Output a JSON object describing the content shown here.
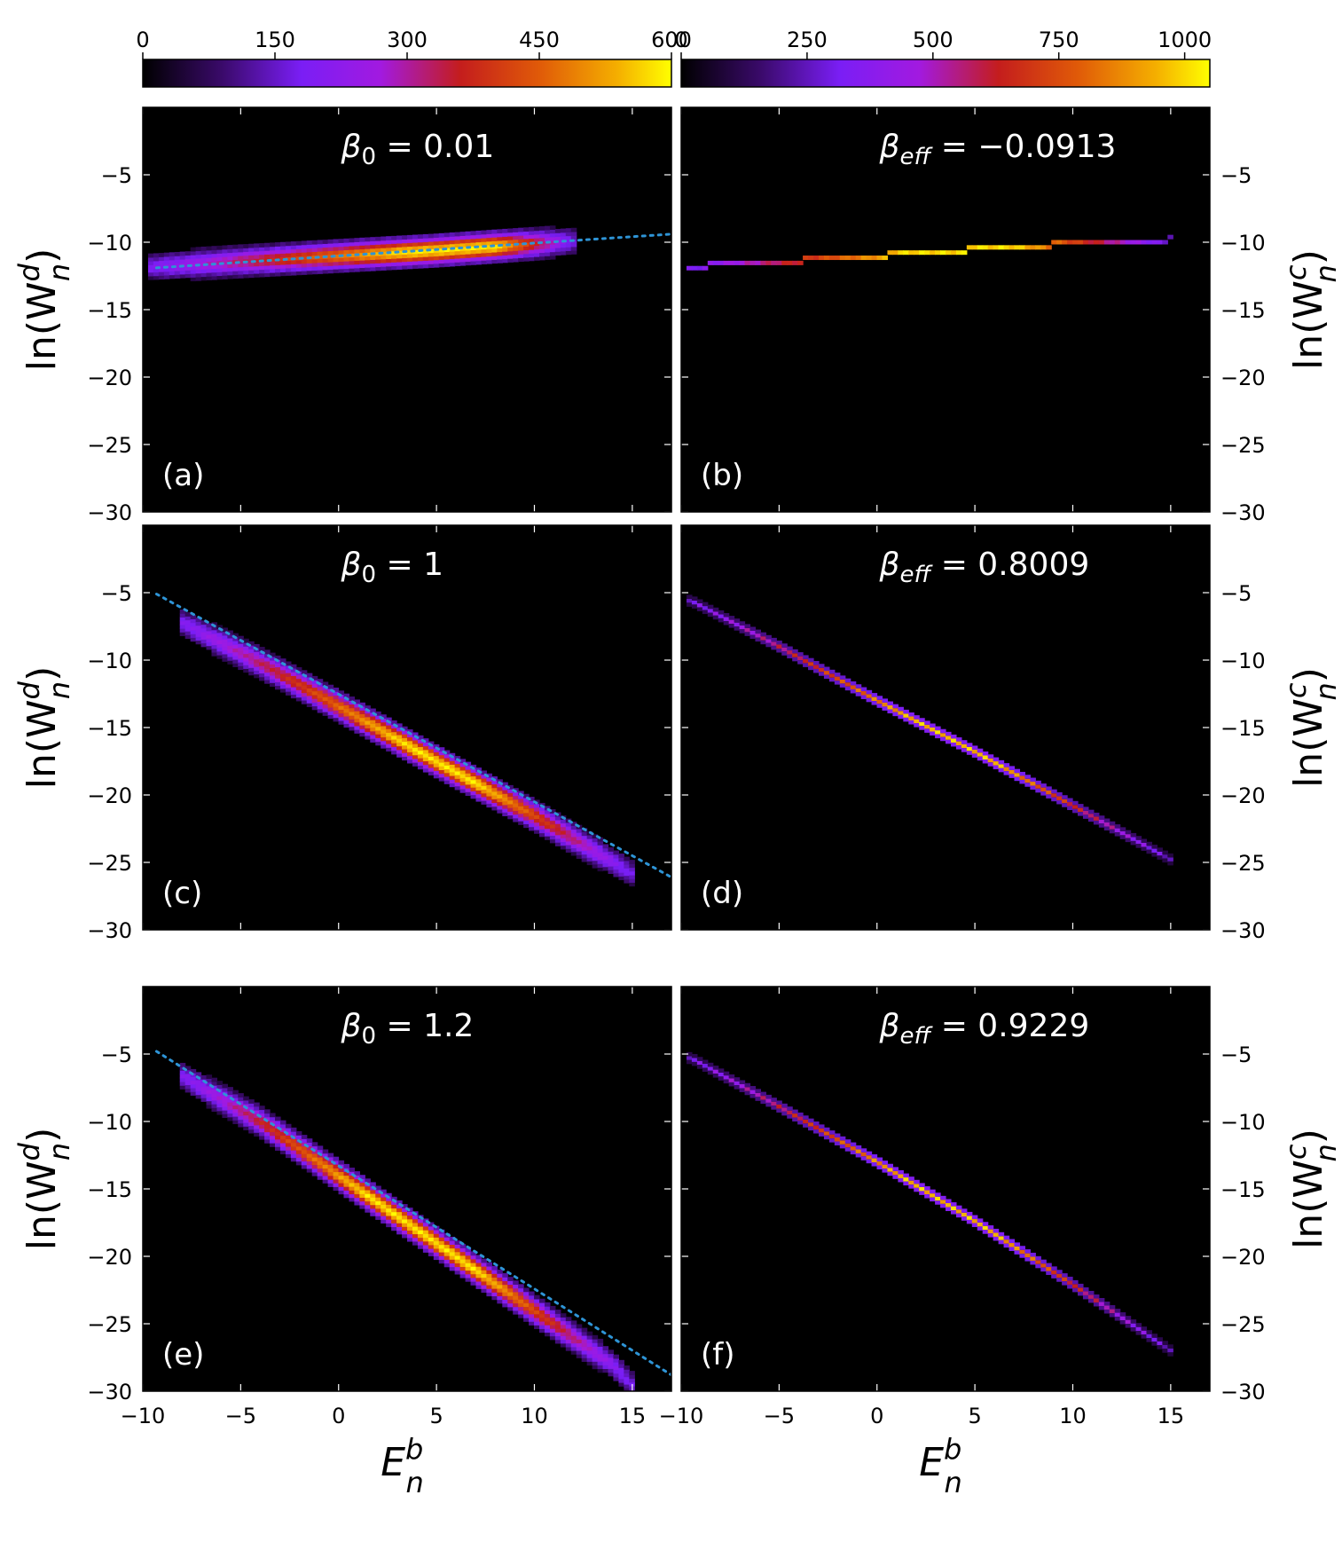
{
  "chart_data": {
    "type": "heatmap",
    "colormap": "gnuplot-like (black-purple-red-orange-yellow)",
    "colorbars": [
      {
        "for_column": "left",
        "ticks": [
          "0",
          "150",
          "300",
          "450",
          "600"
        ],
        "range": [
          0,
          600
        ]
      },
      {
        "for_column": "right",
        "ticks": [
          "0",
          "250",
          "500",
          "750",
          "1000"
        ],
        "range": [
          0,
          1050
        ]
      }
    ],
    "xlabel": {
      "base": "E",
      "sub": "n",
      "sup": "b"
    },
    "ylabel_left": {
      "prefix": "ln(W",
      "sub": "n",
      "sup": "d",
      "suffix": ")"
    },
    "ylabel_right": {
      "prefix": "ln(W",
      "sub": "n",
      "sup": "c",
      "suffix": ")"
    },
    "xlim": [
      -10,
      17
    ],
    "ylim": [
      -30,
      0
    ],
    "x_ticks": [
      "−10",
      "−5",
      "0",
      "5",
      "10",
      "15"
    ],
    "y_ticks": [
      "−5",
      "−10",
      "−15",
      "−20",
      "−25",
      "−30"
    ],
    "panels": [
      {
        "id": "a",
        "tag": "(a)",
        "beta": {
          "sym": "β",
          "sub": "0",
          "value": " = 0.01"
        },
        "distribution": "broad",
        "peak": 600,
        "fit_line": [
          [
            -9.3,
            -11.9
          ],
          [
            17,
            -9.4
          ]
        ],
        "ridge": [
          [
            -9.5,
            -11.8
          ],
          [
            -5,
            -11.4
          ],
          [
            0,
            -11.0
          ],
          [
            5,
            -10.6
          ],
          [
            10,
            -10.1
          ],
          [
            12,
            -9.9
          ]
        ],
        "hot_x": [
          3.5,
          8
        ]
      },
      {
        "id": "b",
        "tag": "(b)",
        "beta": {
          "sym": "β",
          "sub": "eff",
          "value": " = −0.0913"
        },
        "distribution": "step",
        "peak": 1050,
        "ridge": [
          [
            -9.5,
            -11.8
          ],
          [
            -5,
            -11.45
          ],
          [
            0,
            -11.0
          ],
          [
            5,
            -10.55
          ],
          [
            10,
            -10.1
          ],
          [
            15,
            -9.8
          ]
        ],
        "hot_x": [
          1.5,
          7
        ]
      },
      {
        "id": "c",
        "tag": "(c)",
        "beta": {
          "sym": "β",
          "sub": "0",
          "value": " = 1"
        },
        "distribution": "broad",
        "peak": 600,
        "fit_line": [
          [
            -9.3,
            -5.1
          ],
          [
            17,
            -26.1
          ]
        ],
        "ridge": [
          [
            -8,
            -7.2
          ],
          [
            -4,
            -10.2
          ],
          [
            0,
            -13.4
          ],
          [
            5,
            -17.5
          ],
          [
            10,
            -21.5
          ],
          [
            15,
            -25.8
          ]
        ],
        "hot_x": [
          3.5,
          7
        ]
      },
      {
        "id": "d",
        "tag": "(d)",
        "beta": {
          "sym": "β",
          "sub": "eff",
          "value": " = 0.8009"
        },
        "distribution": "narrow",
        "peak": 1050,
        "ridge": [
          [
            -9.5,
            -5.6
          ],
          [
            -5,
            -9.0
          ],
          [
            0,
            -13.0
          ],
          [
            5,
            -16.8
          ],
          [
            10,
            -20.8
          ],
          [
            15,
            -24.8
          ]
        ],
        "hot_x": [
          2,
          6
        ]
      },
      {
        "id": "e",
        "tag": "(e)",
        "beta": {
          "sym": "β",
          "sub": "0",
          "value": " = 1.2"
        },
        "distribution": "broad",
        "peak": 600,
        "fit_line": [
          [
            -9.3,
            -4.8
          ],
          [
            17,
            -28.8
          ]
        ],
        "ridge": [
          [
            -8,
            -6.6
          ],
          [
            -4,
            -10.0
          ],
          [
            0,
            -14.0
          ],
          [
            5,
            -19.0
          ],
          [
            10,
            -24.0
          ],
          [
            14,
            -28.0
          ],
          [
            15,
            -29.5
          ]
        ],
        "hot_x": [
          1.5,
          7
        ]
      },
      {
        "id": "f",
        "tag": "(f)",
        "beta": {
          "sym": "β",
          "sub": "eff",
          "value": " = 0.9229"
        },
        "distribution": "narrow",
        "peak": 1050,
        "ridge": [
          [
            -9.5,
            -5.3
          ],
          [
            -5,
            -8.9
          ],
          [
            0,
            -13.0
          ],
          [
            5,
            -17.4
          ],
          [
            10,
            -22.1
          ],
          [
            15,
            -27.0
          ]
        ],
        "hot_x": [
          1.5,
          6
        ]
      }
    ]
  }
}
